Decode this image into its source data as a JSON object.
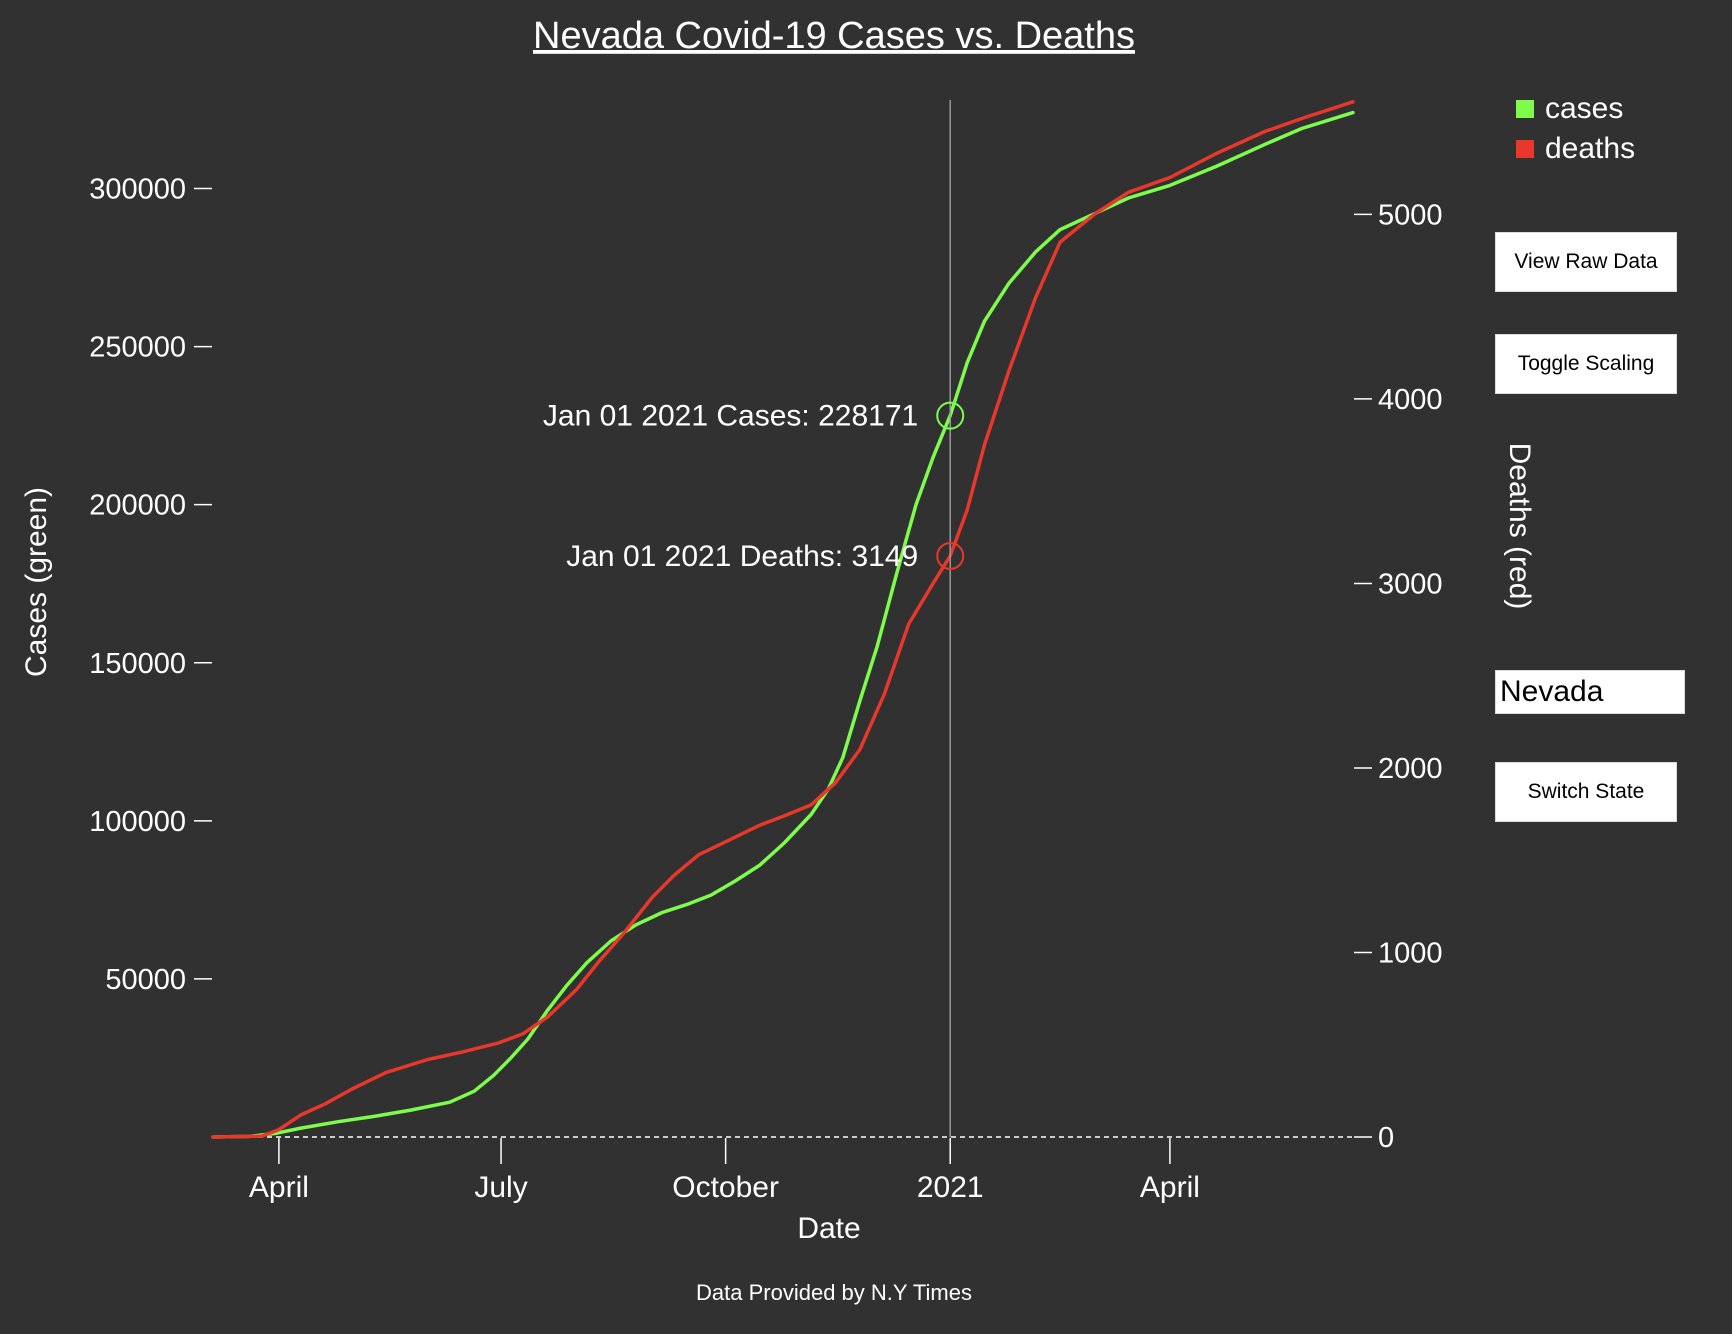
{
  "chart_data": {
    "type": "line",
    "title": "Nevada Covid-19 Cases vs. Deaths",
    "xlabel": "Date",
    "ylabel_left": "Cases (green)",
    "ylabel_right": "Deaths (red)",
    "footer": "Data Provided by N.Y Times",
    "x_ticks": [
      "April",
      "July",
      "October",
      "2021",
      "April"
    ],
    "x_tick_dates": [
      "2020-04-01",
      "2020-07-01",
      "2020-10-01",
      "2021-01-01",
      "2021-04-01"
    ],
    "xlim": [
      "2020-03-05",
      "2021-06-15"
    ],
    "ylim_left": [
      0,
      328000
    ],
    "ylim_right": [
      0,
      5620
    ],
    "y_ticks_left": [
      50000,
      100000,
      150000,
      200000,
      250000,
      300000
    ],
    "y_ticks_right": [
      0,
      1000,
      2000,
      3000,
      4000,
      5000
    ],
    "legend_position": "top-right",
    "colors": {
      "cases": "#7efc4c",
      "deaths": "#e8372b",
      "background": "#313131"
    },
    "series": [
      {
        "name": "cases",
        "axis": "left",
        "color": "#7efc4c",
        "points": [
          [
            "2020-03-05",
            0
          ],
          [
            "2020-03-20",
            200
          ],
          [
            "2020-03-31",
            1200
          ],
          [
            "2020-04-10",
            2800
          ],
          [
            "2020-04-25",
            4800
          ],
          [
            "2020-05-10",
            6500
          ],
          [
            "2020-05-25",
            8500
          ],
          [
            "2020-06-10",
            11000
          ],
          [
            "2020-06-20",
            14500
          ],
          [
            "2020-06-28",
            19500
          ],
          [
            "2020-07-05",
            25000
          ],
          [
            "2020-07-12",
            31000
          ],
          [
            "2020-07-20",
            40000
          ],
          [
            "2020-07-28",
            48000
          ],
          [
            "2020-08-05",
            55000
          ],
          [
            "2020-08-15",
            62000
          ],
          [
            "2020-08-25",
            67000
          ],
          [
            "2020-09-05",
            71000
          ],
          [
            "2020-09-15",
            73500
          ],
          [
            "2020-09-25",
            76500
          ],
          [
            "2020-10-05",
            81000
          ],
          [
            "2020-10-15",
            86000
          ],
          [
            "2020-10-25",
            93000
          ],
          [
            "2020-11-05",
            102000
          ],
          [
            "2020-11-12",
            110000
          ],
          [
            "2020-11-18",
            120000
          ],
          [
            "2020-11-25",
            138000
          ],
          [
            "2020-12-02",
            155000
          ],
          [
            "2020-12-10",
            178000
          ],
          [
            "2020-12-18",
            200000
          ],
          [
            "2020-12-25",
            215000
          ],
          [
            "2021-01-01",
            228171
          ],
          [
            "2021-01-08",
            245000
          ],
          [
            "2021-01-15",
            258000
          ],
          [
            "2021-01-25",
            270000
          ],
          [
            "2021-02-05",
            280000
          ],
          [
            "2021-02-15",
            287000
          ],
          [
            "2021-03-01",
            292000
          ],
          [
            "2021-03-15",
            297000
          ],
          [
            "2021-04-01",
            301000
          ],
          [
            "2021-04-20",
            307000
          ],
          [
            "2021-05-10",
            314000
          ],
          [
            "2021-05-25",
            319000
          ],
          [
            "2021-06-15",
            324000
          ]
        ]
      },
      {
        "name": "deaths",
        "axis": "right",
        "color": "#e8372b",
        "points": [
          [
            "2020-03-05",
            0
          ],
          [
            "2020-03-25",
            5
          ],
          [
            "2020-04-01",
            40
          ],
          [
            "2020-04-10",
            120
          ],
          [
            "2020-04-20",
            180
          ],
          [
            "2020-05-01",
            260
          ],
          [
            "2020-05-15",
            350
          ],
          [
            "2020-06-01",
            420
          ],
          [
            "2020-06-15",
            460
          ],
          [
            "2020-06-30",
            510
          ],
          [
            "2020-07-10",
            560
          ],
          [
            "2020-07-20",
            650
          ],
          [
            "2020-08-01",
            800
          ],
          [
            "2020-08-10",
            950
          ],
          [
            "2020-08-20",
            1100
          ],
          [
            "2020-09-01",
            1300
          ],
          [
            "2020-09-10",
            1420
          ],
          [
            "2020-09-20",
            1530
          ],
          [
            "2020-10-01",
            1600
          ],
          [
            "2020-10-15",
            1690
          ],
          [
            "2020-10-25",
            1740
          ],
          [
            "2020-11-05",
            1800
          ],
          [
            "2020-11-15",
            1920
          ],
          [
            "2020-11-25",
            2100
          ],
          [
            "2020-12-05",
            2400
          ],
          [
            "2020-12-15",
            2780
          ],
          [
            "2020-12-25",
            3000
          ],
          [
            "2021-01-01",
            3149
          ],
          [
            "2021-01-08",
            3400
          ],
          [
            "2021-01-15",
            3750
          ],
          [
            "2021-01-25",
            4150
          ],
          [
            "2021-02-05",
            4550
          ],
          [
            "2021-02-15",
            4850
          ],
          [
            "2021-03-01",
            5000
          ],
          [
            "2021-03-15",
            5120
          ],
          [
            "2021-04-01",
            5200
          ],
          [
            "2021-04-20",
            5330
          ],
          [
            "2021-05-10",
            5450
          ],
          [
            "2021-05-25",
            5520
          ],
          [
            "2021-06-15",
            5610
          ]
        ]
      }
    ],
    "hover": {
      "date": "2021-01-01",
      "cases_label": "Jan 01 2021 Cases: 228171",
      "deaths_label": "Jan 01 2021 Deaths: 3149",
      "cases_value": 228171,
      "deaths_value": 3149
    }
  },
  "controls": {
    "view_raw_data_label": "View Raw Data",
    "toggle_scaling_label": "Toggle Scaling",
    "state_value": "Nevada",
    "switch_state_label": "Switch State"
  }
}
